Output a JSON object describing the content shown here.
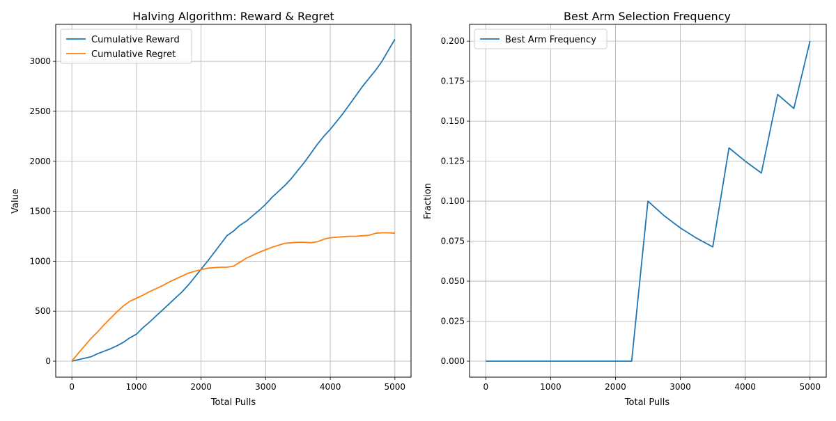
{
  "chart_data": [
    {
      "type": "line",
      "title": "Halving Algorithm: Reward & Regret",
      "xlabel": "Total Pulls",
      "ylabel": "Value",
      "xlim": [
        -250,
        5250
      ],
      "ylim": [
        -160,
        3370
      ],
      "xticks": [
        0,
        1000,
        2000,
        3000,
        4000,
        5000
      ],
      "yticks": [
        0,
        500,
        1000,
        1500,
        2000,
        2500,
        3000
      ],
      "grid": true,
      "legend_position": "top-left",
      "series": [
        {
          "name": "Cumulative Reward",
          "color": "#1f77b4",
          "x": [
            0,
            100,
            200,
            300,
            400,
            500,
            600,
            700,
            800,
            900,
            1000,
            1100,
            1200,
            1300,
            1400,
            1500,
            1600,
            1700,
            1800,
            1900,
            2000,
            2100,
            2200,
            2300,
            2400,
            2500,
            2600,
            2700,
            2800,
            2900,
            3000,
            3100,
            3200,
            3300,
            3400,
            3500,
            3600,
            3700,
            3800,
            3900,
            4000,
            4100,
            4200,
            4300,
            4400,
            4500,
            4600,
            4700,
            4800,
            4900,
            5000
          ],
          "y": [
            0,
            15,
            30,
            45,
            75,
            100,
            125,
            155,
            190,
            235,
            270,
            335,
            390,
            450,
            510,
            570,
            630,
            690,
            760,
            840,
            920,
            1000,
            1085,
            1170,
            1255,
            1300,
            1360,
            1400,
            1455,
            1510,
            1570,
            1640,
            1700,
            1760,
            1830,
            1910,
            1990,
            2080,
            2170,
            2250,
            2320,
            2400,
            2480,
            2570,
            2660,
            2750,
            2830,
            2910,
            3000,
            3110,
            3220
          ]
        },
        {
          "name": "Cumulative Regret",
          "color": "#ff7f0e",
          "x": [
            0,
            100,
            200,
            300,
            400,
            500,
            600,
            700,
            800,
            900,
            1000,
            1100,
            1200,
            1300,
            1400,
            1500,
            1600,
            1700,
            1800,
            1900,
            2000,
            2100,
            2200,
            2300,
            2400,
            2500,
            2600,
            2700,
            2800,
            2900,
            3000,
            3100,
            3200,
            3300,
            3400,
            3500,
            3600,
            3700,
            3800,
            3900,
            4000,
            4100,
            4200,
            4300,
            4400,
            4500,
            4600,
            4700,
            4800,
            4900,
            5000
          ],
          "y": [
            0,
            80,
            155,
            230,
            295,
            365,
            430,
            495,
            555,
            600,
            630,
            660,
            695,
            725,
            755,
            790,
            820,
            850,
            880,
            900,
            915,
            930,
            935,
            940,
            940,
            950,
            990,
            1030,
            1060,
            1090,
            1115,
            1140,
            1160,
            1180,
            1185,
            1190,
            1190,
            1185,
            1195,
            1220,
            1235,
            1240,
            1245,
            1250,
            1250,
            1255,
            1260,
            1280,
            1285,
            1285,
            1280
          ]
        }
      ]
    },
    {
      "type": "line",
      "title": "Best Arm Selection Frequency",
      "xlabel": "Total Pulls",
      "ylabel": "Fraction",
      "xlim": [
        -250,
        5250
      ],
      "ylim": [
        -0.01,
        0.2105
      ],
      "xticks": [
        0,
        1000,
        2000,
        3000,
        4000,
        5000
      ],
      "yticks": [
        0.0,
        0.025,
        0.05,
        0.075,
        0.1,
        0.125,
        0.15,
        0.175,
        0.2
      ],
      "ytick_decimals": 3,
      "grid": true,
      "legend_position": "top-left",
      "series": [
        {
          "name": "Best Arm Frequency",
          "color": "#1f77b4",
          "x": [
            0,
            250,
            500,
            750,
            1000,
            1250,
            1500,
            1750,
            2000,
            2250,
            2500,
            2750,
            3000,
            3250,
            3500,
            3750,
            4000,
            4250,
            4500,
            4750,
            5000
          ],
          "y": [
            0,
            0,
            0,
            0,
            0,
            0,
            0,
            0,
            0,
            0,
            0.1,
            0.0909,
            0.0833,
            0.0769,
            0.0714,
            0.1333,
            0.125,
            0.1176,
            0.1667,
            0.1579,
            0.2
          ]
        }
      ]
    }
  ]
}
